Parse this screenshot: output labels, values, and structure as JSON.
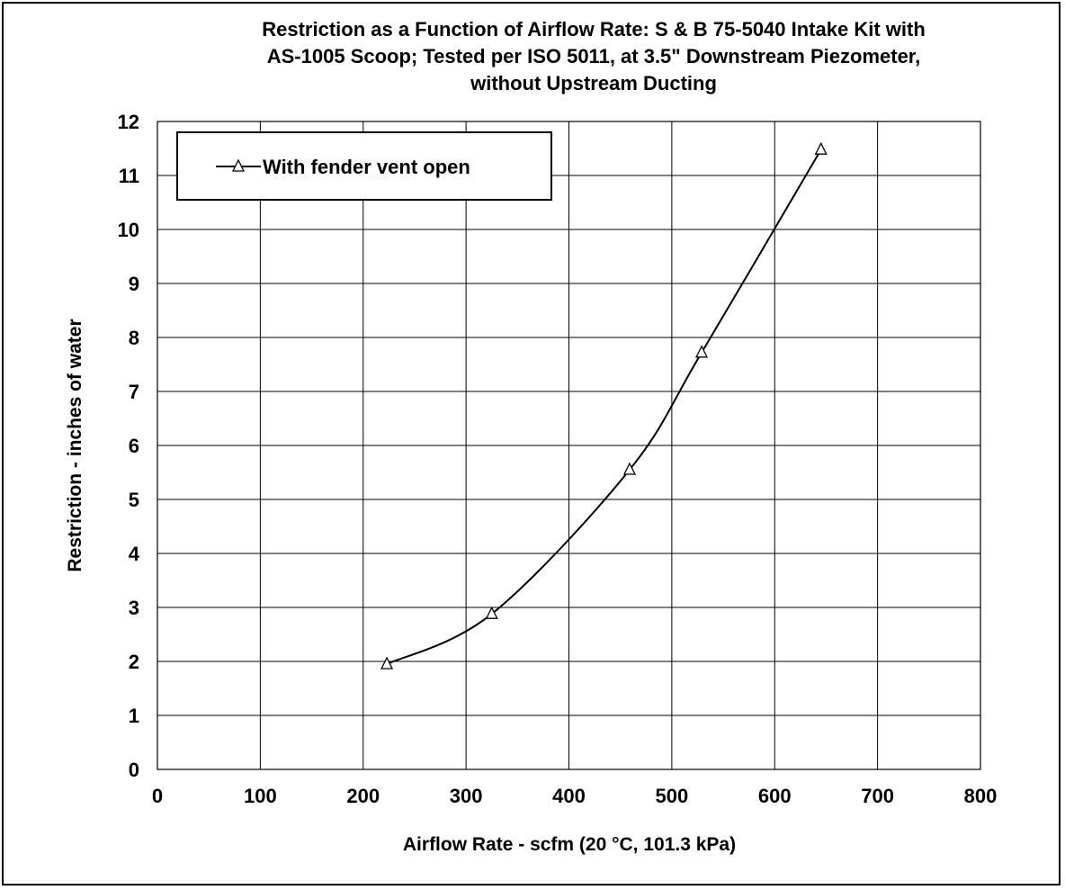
{
  "chart_data": {
    "type": "line",
    "title_lines": [
      "Restriction as a Function of Airflow Rate: S & B 75-5040 Intake Kit with",
      "AS-1005 Scoop; Tested per ISO 5011, at 3.5\" Downstream Piezometer,",
      "without Upstream Ducting"
    ],
    "xlabel": "Airflow Rate - scfm (20 °C, 101.3 kPa)",
    "ylabel": "Restriction - inches of water",
    "xlim": [
      0,
      800
    ],
    "ylim": [
      0,
      12
    ],
    "x_ticks": [
      0,
      100,
      200,
      300,
      400,
      500,
      600,
      700,
      800
    ],
    "y_ticks": [
      0,
      1,
      2,
      3,
      4,
      5,
      6,
      7,
      8,
      9,
      10,
      11,
      12
    ],
    "grid": true,
    "legend_position": "top-left",
    "series": [
      {
        "name": "With fender vent open",
        "marker": "open-triangle",
        "color": "#000000",
        "x": [
          223,
          325,
          459,
          529,
          645
        ],
        "y": [
          1.95,
          2.88,
          5.55,
          7.72,
          11.48
        ]
      }
    ]
  }
}
